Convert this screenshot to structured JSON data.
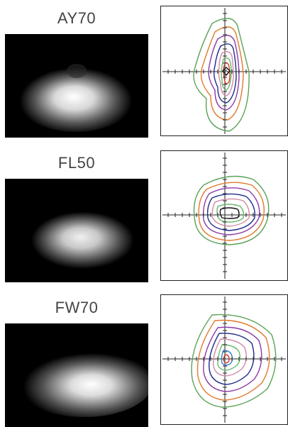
{
  "items": [
    {
      "label": "AY70",
      "beam_image": "light-beam-photometric-spot",
      "contour_plot": "isolux-contour-diagram"
    },
    {
      "label": "FL50",
      "beam_image": "light-beam-photometric-spot",
      "contour_plot": "isolux-contour-diagram"
    },
    {
      "label": "FW70",
      "beam_image": "light-beam-photometric-spot",
      "contour_plot": "isolux-contour-diagram"
    }
  ],
  "colors": {
    "contours": [
      "#5aa257",
      "#e07a2b",
      "#8b3aa6",
      "#1e2a8c",
      "#d18aa8",
      "#66b86a",
      "#2f7fd0",
      "#d23a2a"
    ],
    "axis": "#222222"
  }
}
